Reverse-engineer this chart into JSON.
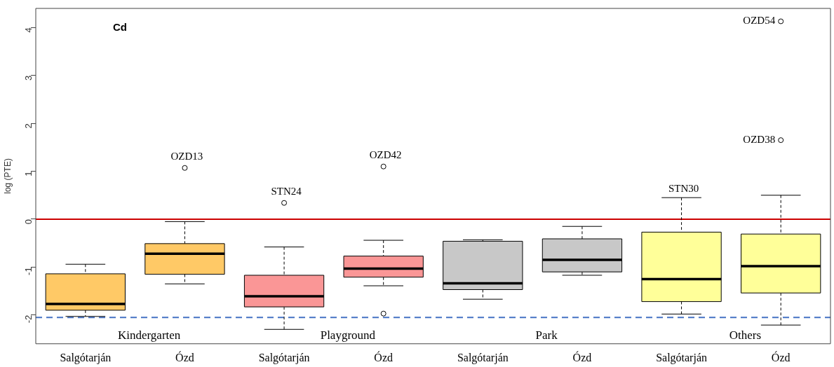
{
  "chart_data": {
    "type": "box",
    "title": "Cd",
    "ylabel": "log (PTE)",
    "categories": [
      "Salgótarján",
      "Ózd",
      "Salgótarján",
      "Ózd",
      "Salgótarján",
      "Ózd",
      "Salgótarján",
      "Ózd"
    ],
    "colors": [
      "#ffc966",
      "#ffc966",
      "#fa9696",
      "#fa9696",
      "#c8c8c8",
      "#c8c8c8",
      "#ffff99",
      "#ffff99"
    ],
    "boxes": [
      {
        "low": -2.03,
        "q1": -1.9,
        "median": -1.77,
        "q3": -1.14,
        "high": -0.94
      },
      {
        "low": -1.35,
        "q1": -1.15,
        "median": -0.72,
        "q3": -0.51,
        "high": -0.05,
        "outliers": [
          1.07
        ]
      },
      {
        "low": -2.3,
        "q1": -1.83,
        "median": -1.61,
        "q3": -1.17,
        "high": -0.58,
        "outliers": [
          0.34
        ]
      },
      {
        "low": -1.39,
        "q1": -1.21,
        "median": -1.03,
        "q3": -0.77,
        "high": -0.44,
        "outliers": [
          1.1,
          -1.97
        ]
      },
      {
        "low": -1.67,
        "q1": -1.47,
        "median": -1.34,
        "q3": -0.46,
        "high": -0.43
      },
      {
        "low": -1.17,
        "q1": -1.1,
        "median": -0.85,
        "q3": -0.41,
        "high": -0.15
      },
      {
        "low": -1.98,
        "q1": -1.72,
        "median": -1.25,
        "q3": -0.27,
        "high": 0.45
      },
      {
        "low": -2.21,
        "q1": -1.54,
        "median": -0.98,
        "q3": -0.31,
        "high": 0.5,
        "outliers": [
          1.65,
          4.13
        ]
      }
    ],
    "ylim": [
      -2.6,
      4.4
    ],
    "yticks": [
      -2,
      -1,
      0,
      1,
      2,
      3,
      4
    ],
    "grid": false,
    "legend": false,
    "marker": "circle",
    "ref_lines": [
      {
        "axis": "y",
        "value": 0,
        "color": "#cc0000",
        "line_style": "solid"
      },
      {
        "axis": "y",
        "value": -2.05,
        "color": "#4472c4",
        "line_style": "dashed"
      }
    ],
    "annotations": [
      "Kindergarten",
      "Playground",
      "Park",
      "Others",
      "OZD13",
      "STN24",
      "OZD42",
      "STN30",
      "OZD38",
      "OZD54"
    ]
  }
}
